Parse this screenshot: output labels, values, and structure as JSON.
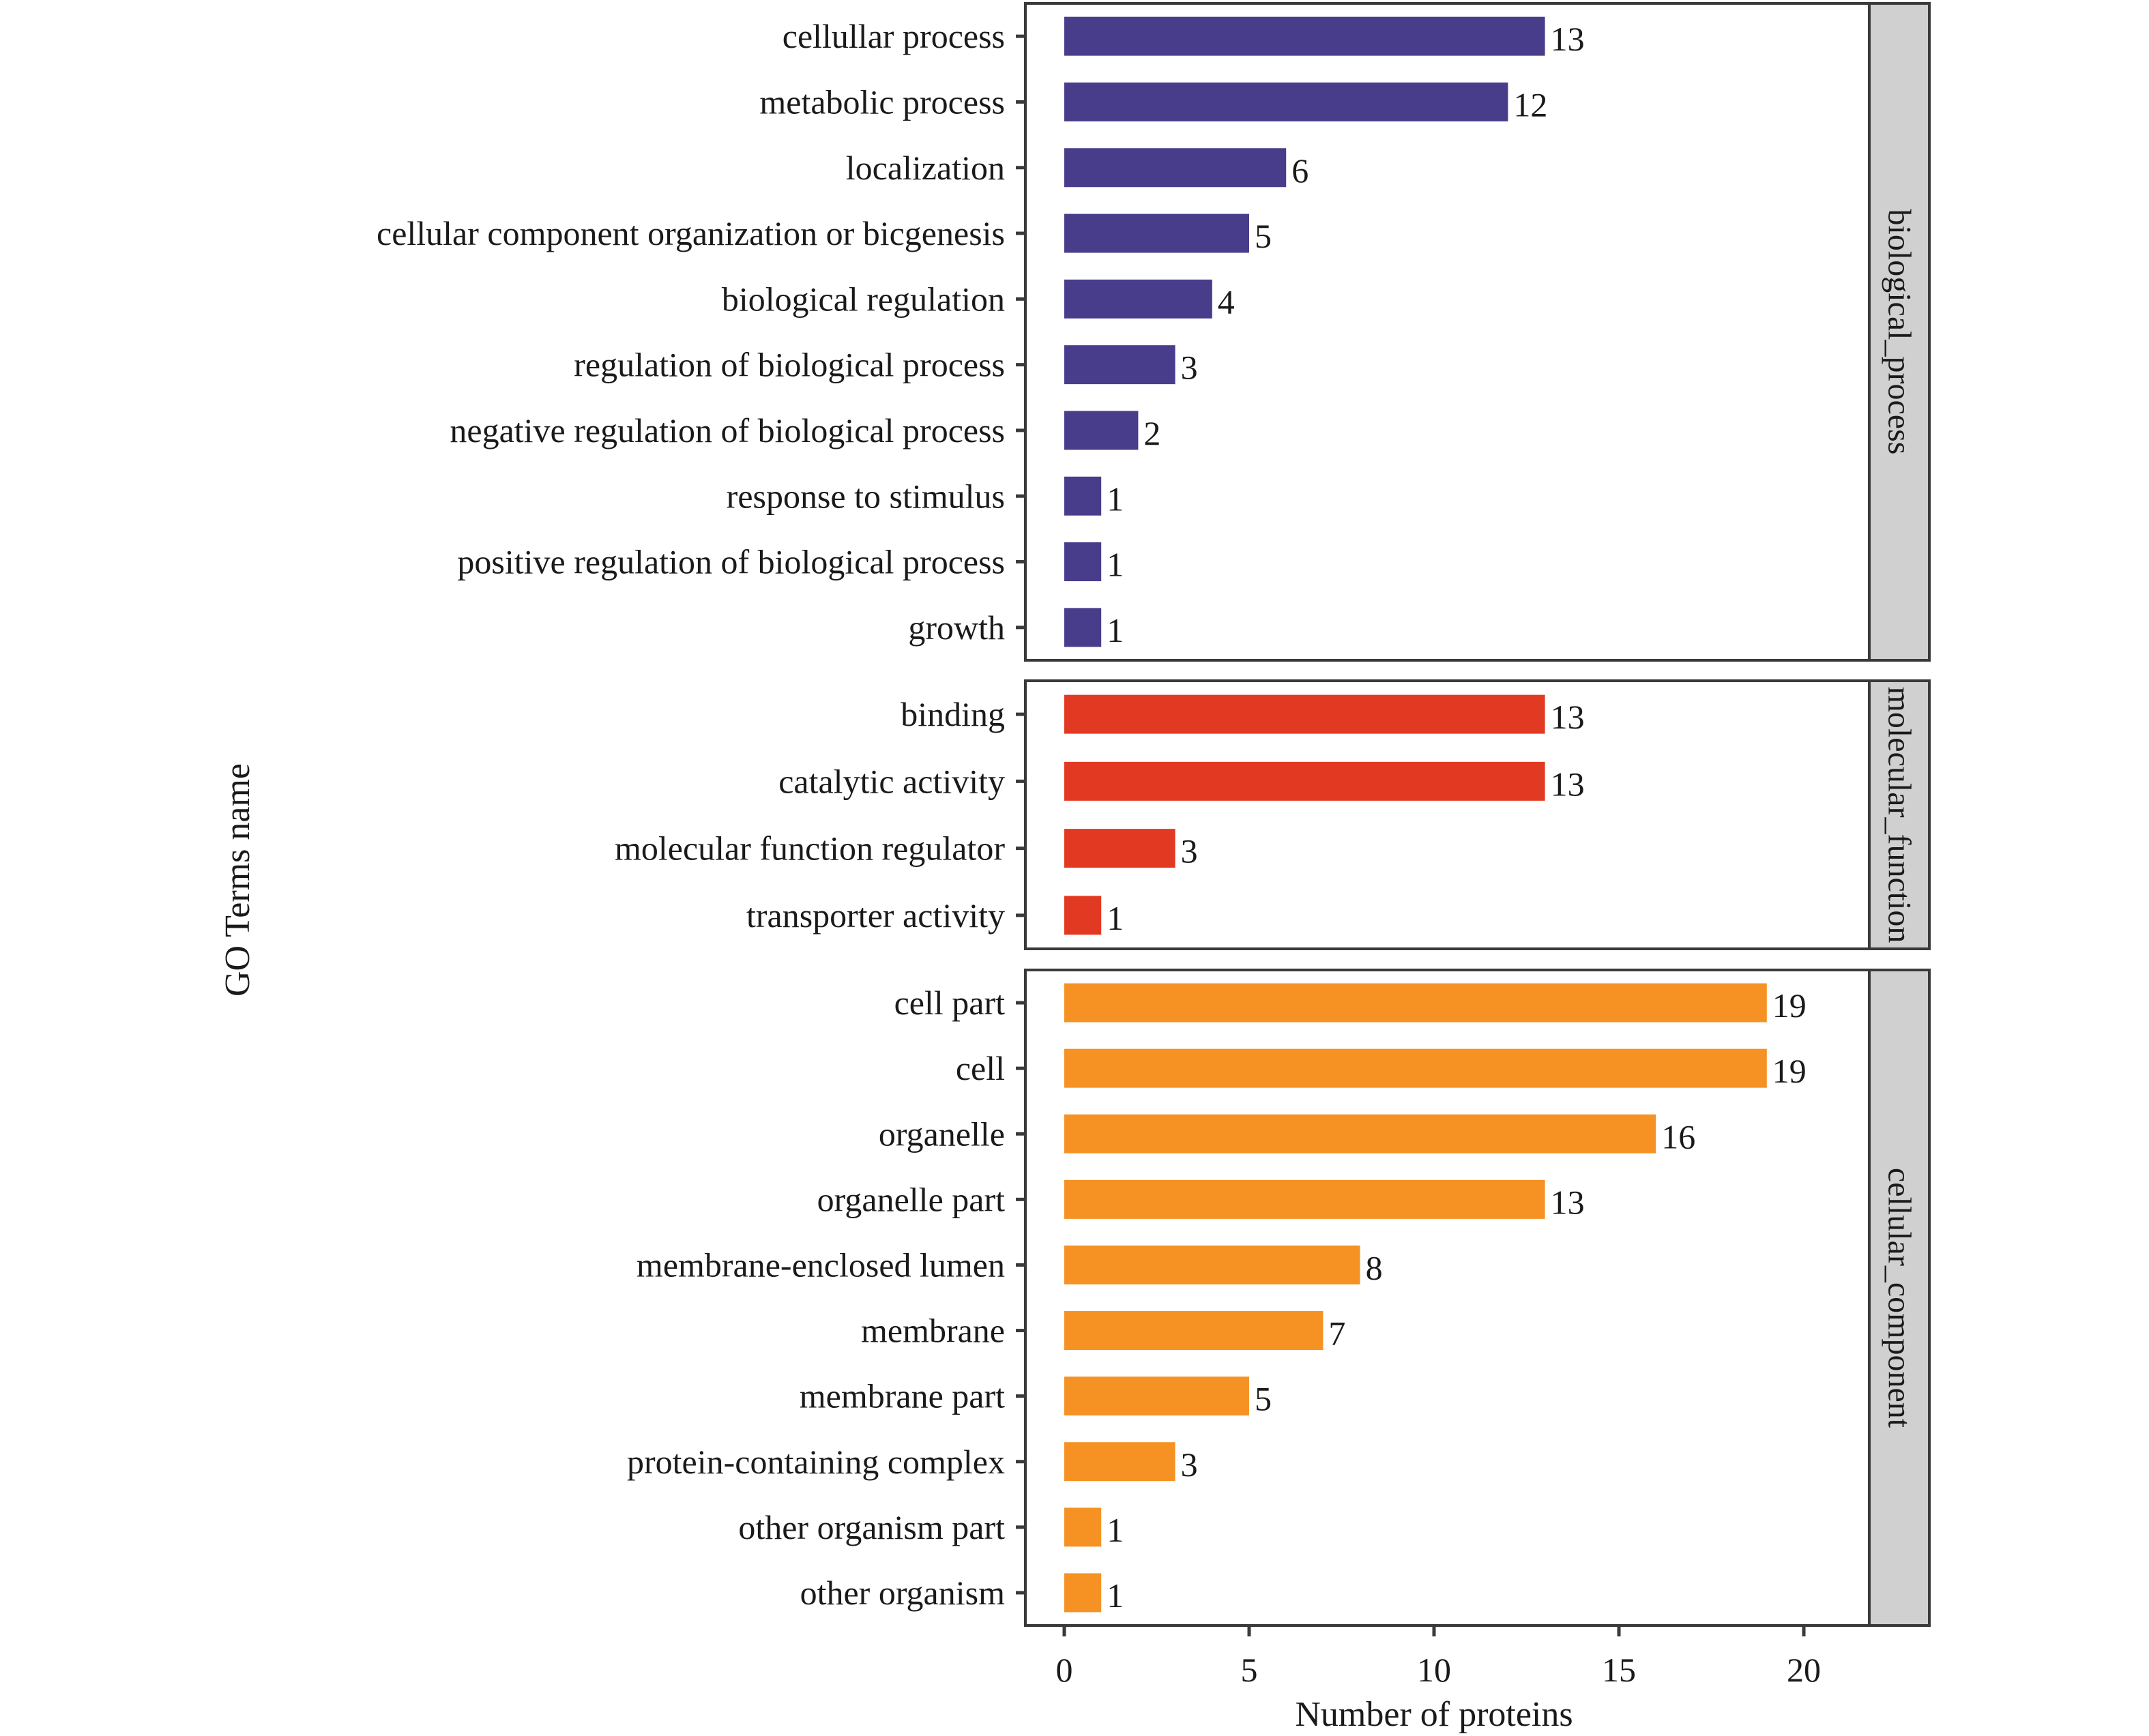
{
  "chart_data": {
    "type": "bar",
    "orientation": "horizontal",
    "title": "",
    "xlabel": "Number of proteins",
    "ylabel": "GO Terms name",
    "xlim": [
      0,
      22
    ],
    "xticks": [
      0,
      5,
      10,
      15,
      20
    ],
    "grid": false,
    "legend": "none",
    "facets": [
      {
        "name": "biological_process",
        "color": "#483D8B",
        "categories": [
          "cellullar process",
          "metabolic process",
          "localization",
          "cellular component organization or bicgenesis",
          "biological regulation",
          "regulation of biological process",
          "negative regulation of biological process",
          "response to stimulus",
          "positive regulation of biological process",
          "growth"
        ],
        "values": [
          13,
          12,
          6,
          5,
          4,
          3,
          2,
          1,
          1,
          1
        ]
      },
      {
        "name": "molecular_function",
        "color": "#E23A22",
        "categories": [
          "binding",
          "catalytic activity",
          "molecular function regulator",
          "transporter activity"
        ],
        "values": [
          13,
          13,
          3,
          1
        ]
      },
      {
        "name": "cellular_component",
        "color": "#F59223",
        "categories": [
          "cell part",
          "cell",
          "organelle",
          "organelle part",
          "membrane-enclosed lumen",
          "membrane",
          "membrane part",
          "protein-containing complex",
          "other organism part",
          "other organism"
        ],
        "values": [
          19,
          19,
          16,
          13,
          8,
          7,
          5,
          3,
          1,
          1
        ]
      }
    ]
  }
}
